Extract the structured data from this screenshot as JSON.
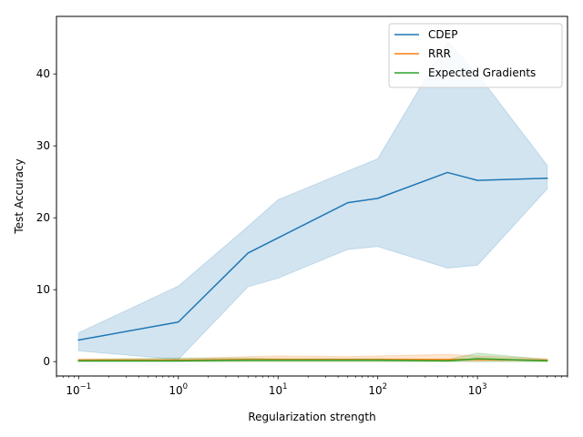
{
  "chart_data": {
    "type": "line",
    "title": "",
    "xlabel": "Regularization strength",
    "ylabel": "Test Accuracy",
    "xscale": "log",
    "xlim": [
      0.06,
      8000
    ],
    "ylim": [
      -2,
      48
    ],
    "x_ticks": [
      {
        "value": 0.1,
        "base": "10",
        "exp": "−1"
      },
      {
        "value": 1,
        "base": "10",
        "exp": "0"
      },
      {
        "value": 10,
        "base": "10",
        "exp": "1"
      },
      {
        "value": 100,
        "base": "10",
        "exp": "2"
      },
      {
        "value": 1000,
        "base": "10",
        "exp": "3"
      }
    ],
    "y_ticks": [
      {
        "value": 0,
        "label": "0"
      },
      {
        "value": 10,
        "label": "10"
      },
      {
        "value": 20,
        "label": "20"
      },
      {
        "value": 30,
        "label": "30"
      },
      {
        "value": 40,
        "label": "40"
      }
    ],
    "legend_position": "top-right",
    "grid": false,
    "series": [
      {
        "name": "CDEP",
        "color": "#1f77b4",
        "x": [
          0.1,
          1,
          5,
          10,
          50,
          100,
          500,
          1000,
          5000
        ],
        "y": [
          3.0,
          5.5,
          15.1,
          17.2,
          22.1,
          22.7,
          26.3,
          25.2,
          25.5
        ],
        "lower": [
          1.5,
          0.3,
          10.4,
          11.6,
          15.6,
          16.0,
          13.0,
          13.4,
          24.0
        ],
        "upper": [
          4.0,
          10.5,
          18.8,
          22.5,
          26.5,
          28.2,
          44.5,
          40.0,
          27.3
        ]
      },
      {
        "name": "RRR",
        "color": "#ff7f0e",
        "x": [
          0.1,
          1,
          5,
          10,
          50,
          100,
          500,
          1000,
          5000
        ],
        "y": [
          0.2,
          0.2,
          0.3,
          0.3,
          0.3,
          0.3,
          0.3,
          0.3,
          0.2
        ],
        "lower": [
          0.05,
          0.05,
          0.05,
          0.05,
          0.05,
          0.05,
          0.05,
          0.05,
          0.05
        ],
        "upper": [
          0.4,
          0.4,
          0.7,
          0.8,
          0.7,
          0.8,
          1.0,
          0.8,
          0.4
        ]
      },
      {
        "name": "Expected Gradients",
        "color": "#2ca02c",
        "x": [
          0.1,
          1,
          5,
          10,
          50,
          100,
          500,
          1000,
          5000
        ],
        "y": [
          0.1,
          0.1,
          0.2,
          0.2,
          0.2,
          0.2,
          0.1,
          0.4,
          0.1
        ],
        "lower": [
          0.0,
          0.0,
          0.0,
          0.0,
          0.0,
          0.0,
          0.0,
          0.0,
          0.0
        ],
        "upper": [
          0.3,
          0.5,
          0.5,
          0.4,
          0.4,
          0.4,
          0.3,
          1.2,
          0.3
        ]
      }
    ]
  }
}
